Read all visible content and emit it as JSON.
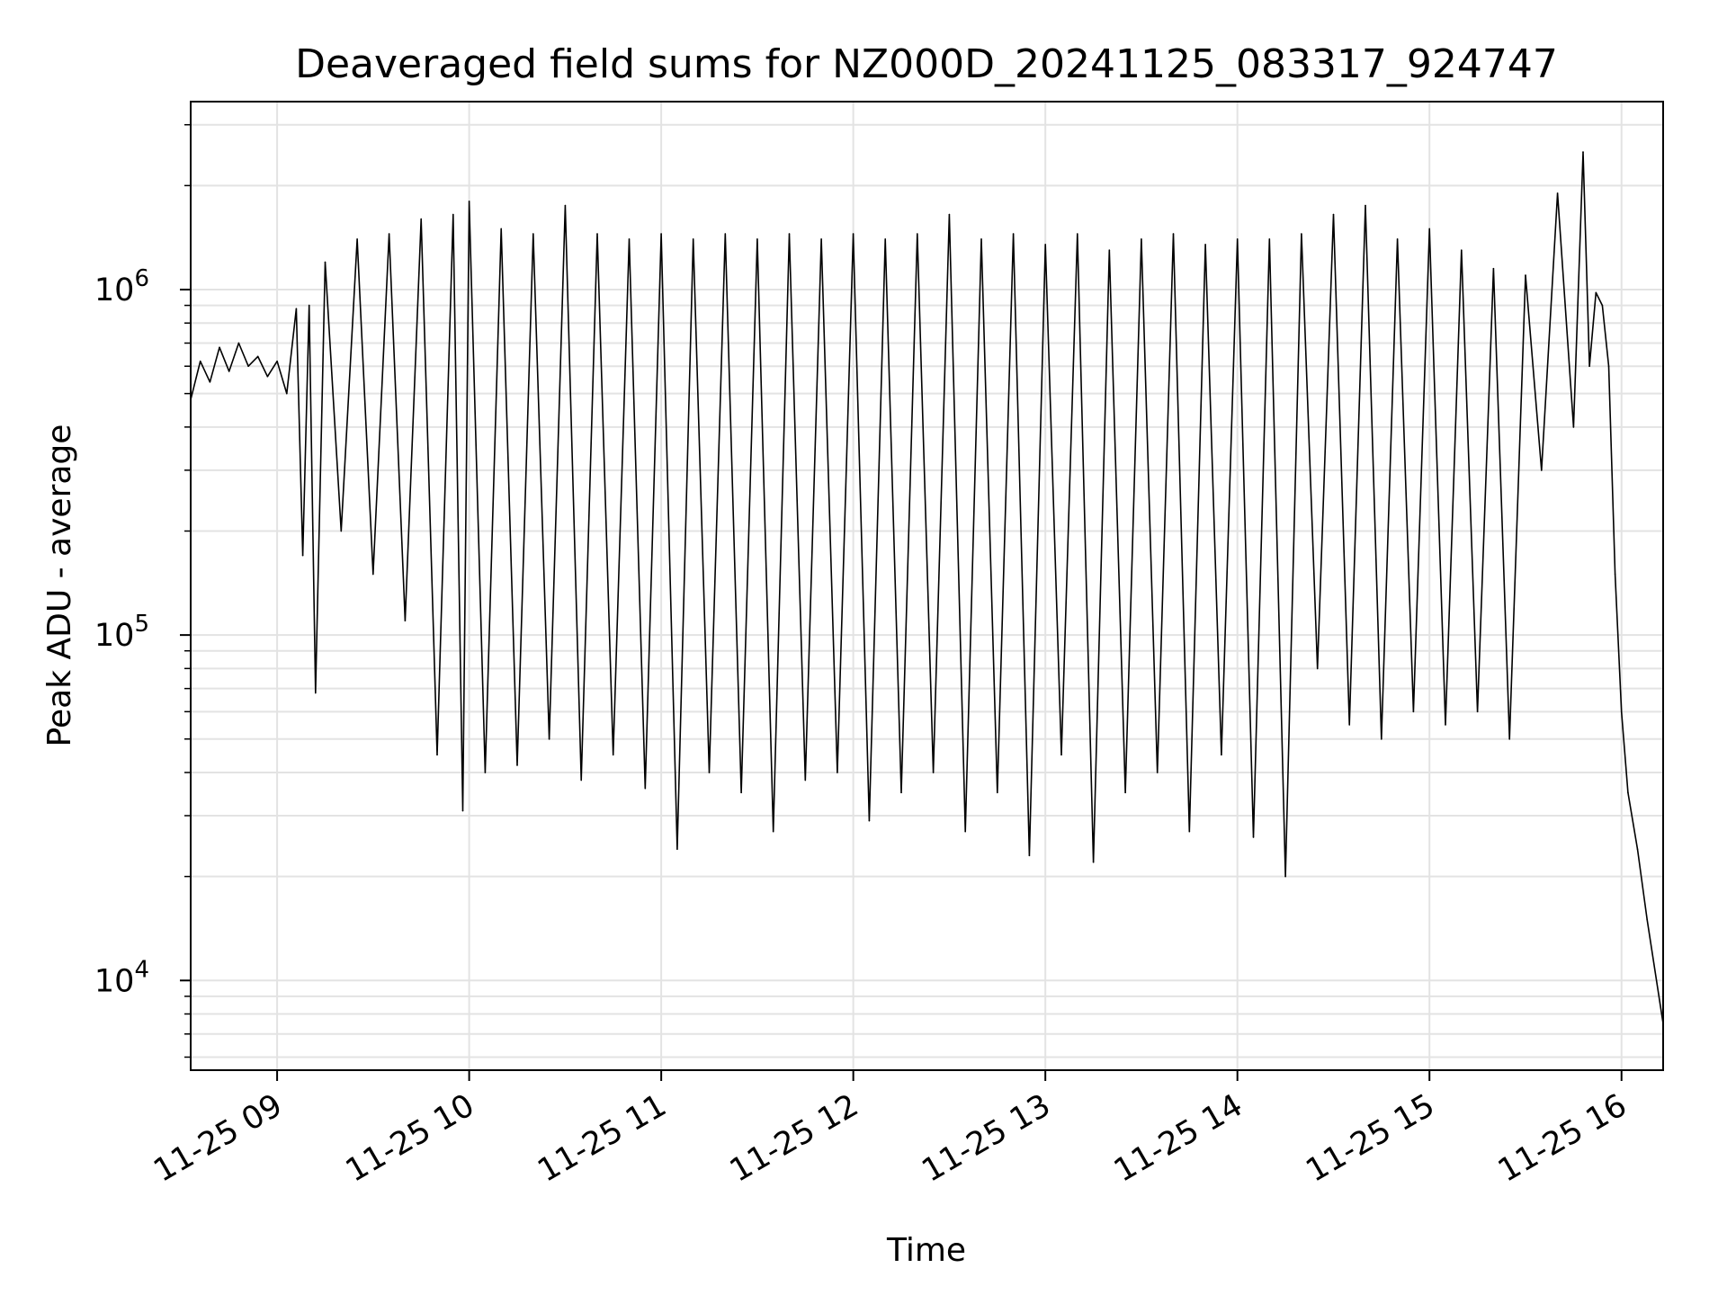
{
  "chart_data": {
    "type": "line",
    "title": "Deaveraged field sums for NZ000D_20241125_083317_924747",
    "xlabel": "Time",
    "ylabel": "Peak ADU - average",
    "yscale": "log",
    "xlim": [
      "2024-11-25 08:33",
      "2024-11-25 16:13"
    ],
    "ylim": [
      5500,
      3500000
    ],
    "grid": true,
    "line_color": "#000000",
    "grid_color": "#e3e3e3",
    "x_ticks": [
      {
        "value": "2024-11-25 09:00",
        "label": "11-25 09"
      },
      {
        "value": "2024-11-25 10:00",
        "label": "11-25 10"
      },
      {
        "value": "2024-11-25 11:00",
        "label": "11-25 11"
      },
      {
        "value": "2024-11-25 12:00",
        "label": "11-25 12"
      },
      {
        "value": "2024-11-25 13:00",
        "label": "11-25 13"
      },
      {
        "value": "2024-11-25 14:00",
        "label": "11-25 14"
      },
      {
        "value": "2024-11-25 15:00",
        "label": "11-25 15"
      },
      {
        "value": "2024-11-25 16:00",
        "label": "11-25 16"
      }
    ],
    "y_ticks": [
      {
        "value": 10000,
        "base": "10",
        "exp": "4"
      },
      {
        "value": 100000,
        "base": "10",
        "exp": "5"
      },
      {
        "value": 1000000,
        "base": "10",
        "exp": "6"
      }
    ],
    "series": [
      {
        "points": [
          [
            "2024-11-25 08:33",
            480000
          ],
          [
            "2024-11-25 08:36",
            620000
          ],
          [
            "2024-11-25 08:39",
            540000
          ],
          [
            "2024-11-25 08:42",
            680000
          ],
          [
            "2024-11-25 08:45",
            580000
          ],
          [
            "2024-11-25 08:48",
            700000
          ],
          [
            "2024-11-25 08:51",
            600000
          ],
          [
            "2024-11-25 08:54",
            640000
          ],
          [
            "2024-11-25 08:57",
            560000
          ],
          [
            "2024-11-25 09:00",
            620000
          ],
          [
            "2024-11-25 09:03",
            500000
          ],
          [
            "2024-11-25 09:06",
            880000
          ],
          [
            "2024-11-25 09:08",
            170000
          ],
          [
            "2024-11-25 09:10",
            900000
          ],
          [
            "2024-11-25 09:12",
            68000
          ],
          [
            "2024-11-25 09:15",
            1200000
          ],
          [
            "2024-11-25 09:20",
            200000
          ],
          [
            "2024-11-25 09:25",
            1400000
          ],
          [
            "2024-11-25 09:30",
            150000
          ],
          [
            "2024-11-25 09:35",
            1450000
          ],
          [
            "2024-11-25 09:40",
            110000
          ],
          [
            "2024-11-25 09:45",
            1600000
          ],
          [
            "2024-11-25 09:50",
            45000
          ],
          [
            "2024-11-25 09:55",
            1650000
          ],
          [
            "2024-11-25 09:58",
            31000
          ],
          [
            "2024-11-25 10:00",
            1800000
          ],
          [
            "2024-11-25 10:05",
            40000
          ],
          [
            "2024-11-25 10:10",
            1500000
          ],
          [
            "2024-11-25 10:15",
            42000
          ],
          [
            "2024-11-25 10:20",
            1450000
          ],
          [
            "2024-11-25 10:25",
            50000
          ],
          [
            "2024-11-25 10:30",
            1750000
          ],
          [
            "2024-11-25 10:35",
            38000
          ],
          [
            "2024-11-25 10:40",
            1450000
          ],
          [
            "2024-11-25 10:45",
            45000
          ],
          [
            "2024-11-25 10:50",
            1400000
          ],
          [
            "2024-11-25 10:55",
            36000
          ],
          [
            "2024-11-25 11:00",
            1450000
          ],
          [
            "2024-11-25 11:05",
            24000
          ],
          [
            "2024-11-25 11:10",
            1400000
          ],
          [
            "2024-11-25 11:15",
            40000
          ],
          [
            "2024-11-25 11:20",
            1450000
          ],
          [
            "2024-11-25 11:25",
            35000
          ],
          [
            "2024-11-25 11:30",
            1400000
          ],
          [
            "2024-11-25 11:35",
            27000
          ],
          [
            "2024-11-25 11:40",
            1450000
          ],
          [
            "2024-11-25 11:45",
            38000
          ],
          [
            "2024-11-25 11:50",
            1400000
          ],
          [
            "2024-11-25 11:55",
            40000
          ],
          [
            "2024-11-25 12:00",
            1450000
          ],
          [
            "2024-11-25 12:05",
            29000
          ],
          [
            "2024-11-25 12:10",
            1400000
          ],
          [
            "2024-11-25 12:15",
            35000
          ],
          [
            "2024-11-25 12:20",
            1450000
          ],
          [
            "2024-11-25 12:25",
            40000
          ],
          [
            "2024-11-25 12:30",
            1650000
          ],
          [
            "2024-11-25 12:35",
            27000
          ],
          [
            "2024-11-25 12:40",
            1400000
          ],
          [
            "2024-11-25 12:45",
            35000
          ],
          [
            "2024-11-25 12:50",
            1450000
          ],
          [
            "2024-11-25 12:55",
            23000
          ],
          [
            "2024-11-25 13:00",
            1350000
          ],
          [
            "2024-11-25 13:05",
            45000
          ],
          [
            "2024-11-25 13:10",
            1450000
          ],
          [
            "2024-11-25 13:15",
            22000
          ],
          [
            "2024-11-25 13:20",
            1300000
          ],
          [
            "2024-11-25 13:25",
            35000
          ],
          [
            "2024-11-25 13:30",
            1400000
          ],
          [
            "2024-11-25 13:35",
            40000
          ],
          [
            "2024-11-25 13:40",
            1450000
          ],
          [
            "2024-11-25 13:45",
            27000
          ],
          [
            "2024-11-25 13:50",
            1350000
          ],
          [
            "2024-11-25 13:55",
            45000
          ],
          [
            "2024-11-25 14:00",
            1400000
          ],
          [
            "2024-11-25 14:05",
            26000
          ],
          [
            "2024-11-25 14:10",
            1400000
          ],
          [
            "2024-11-25 14:15",
            20000
          ],
          [
            "2024-11-25 14:20",
            1450000
          ],
          [
            "2024-11-25 14:25",
            80000
          ],
          [
            "2024-11-25 14:30",
            1650000
          ],
          [
            "2024-11-25 14:35",
            55000
          ],
          [
            "2024-11-25 14:40",
            1750000
          ],
          [
            "2024-11-25 14:45",
            50000
          ],
          [
            "2024-11-25 14:50",
            1400000
          ],
          [
            "2024-11-25 14:55",
            60000
          ],
          [
            "2024-11-25 15:00",
            1500000
          ],
          [
            "2024-11-25 15:05",
            55000
          ],
          [
            "2024-11-25 15:10",
            1300000
          ],
          [
            "2024-11-25 15:15",
            60000
          ],
          [
            "2024-11-25 15:20",
            1150000
          ],
          [
            "2024-11-25 15:25",
            50000
          ],
          [
            "2024-11-25 15:30",
            1100000
          ],
          [
            "2024-11-25 15:35",
            300000
          ],
          [
            "2024-11-25 15:40",
            1900000
          ],
          [
            "2024-11-25 15:45",
            400000
          ],
          [
            "2024-11-25 15:48",
            2500000
          ],
          [
            "2024-11-25 15:50",
            600000
          ],
          [
            "2024-11-25 15:52",
            980000
          ],
          [
            "2024-11-25 15:54",
            900000
          ],
          [
            "2024-11-25 15:56",
            600000
          ],
          [
            "2024-11-25 15:58",
            150000
          ],
          [
            "2024-11-25 16:00",
            60000
          ],
          [
            "2024-11-25 16:02",
            35000
          ],
          [
            "2024-11-25 16:05",
            24000
          ],
          [
            "2024-11-25 16:08",
            15000
          ],
          [
            "2024-11-25 16:13",
            7500
          ]
        ]
      }
    ]
  }
}
